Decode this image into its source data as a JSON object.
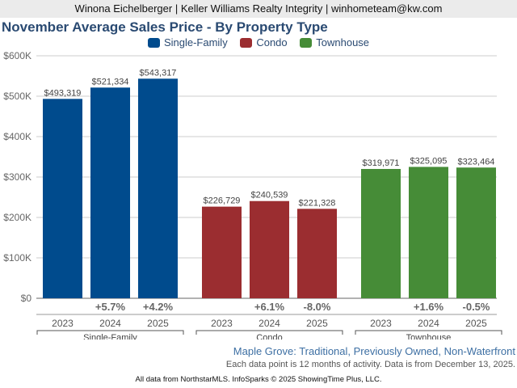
{
  "header": {
    "agent_line": "Winona Eichelberger | Keller Williams Realty Integrity | winhometeam@kw.com"
  },
  "footer": {
    "subtitle": "Maple Grove: Traditional, Previously Owned, Non-Waterfront",
    "note": "Each data point is 12 months of activity. Data is from December 13, 2025.",
    "credit": "All data from NorthstarMLS. InfoSparks © 2025 ShowingTime Plus, LLC."
  },
  "chart_data": {
    "type": "bar",
    "title": "November Average Sales Price - By Property Type",
    "xlabel": "",
    "ylabel": "",
    "ylim": [
      0,
      600000
    ],
    "yticks": [
      0,
      100000,
      200000,
      300000,
      400000,
      500000,
      600000
    ],
    "ytick_labels": [
      "$0",
      "$100K",
      "$200K",
      "$300K",
      "$400K",
      "$500K",
      "$600K"
    ],
    "grid": true,
    "legend_position": "top-center",
    "categories": [
      "2023",
      "2024",
      "2025"
    ],
    "series": [
      {
        "name": "Single-Family",
        "color": "#004b8d",
        "values": [
          493319,
          521334,
          543317
        ],
        "value_labels": [
          "$493,319",
          "$521,334",
          "$543,317"
        ],
        "changes": [
          "",
          "+5.7%",
          "+4.2%"
        ]
      },
      {
        "name": "Condo",
        "color": "#9b2d30",
        "values": [
          226729,
          240539,
          221328
        ],
        "value_labels": [
          "$226,729",
          "$240,539",
          "$221,328"
        ],
        "changes": [
          "",
          "+6.1%",
          "-8.0%"
        ]
      },
      {
        "name": "Townhouse",
        "color": "#468c37",
        "values": [
          319971,
          325095,
          323464
        ],
        "value_labels": [
          "$319,971",
          "$325,095",
          "$323,464"
        ],
        "changes": [
          "",
          "+1.6%",
          "-0.5%"
        ]
      }
    ]
  }
}
